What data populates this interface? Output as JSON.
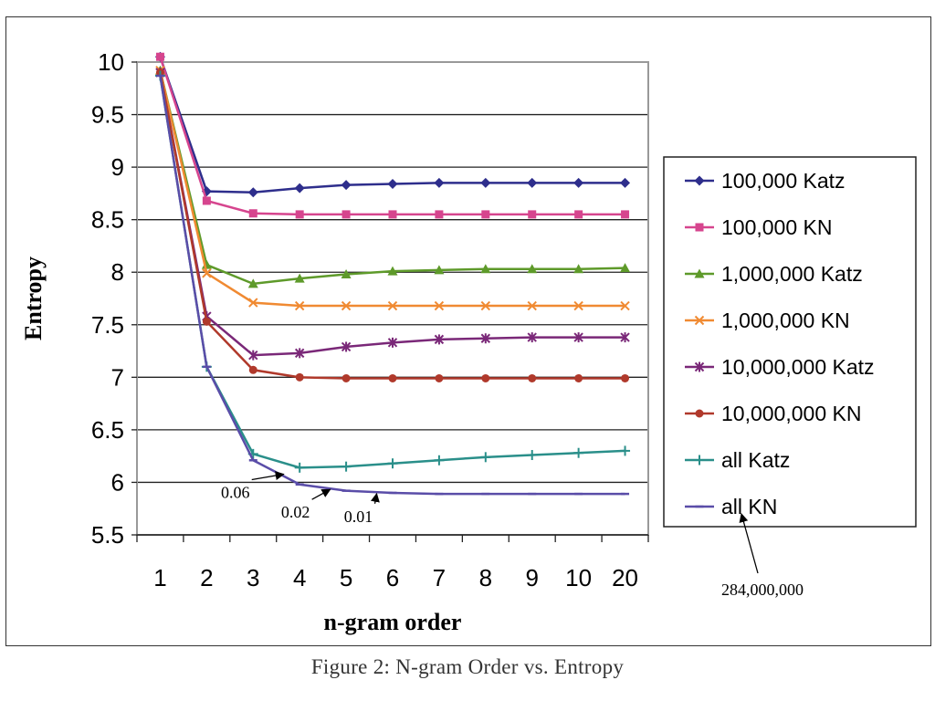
{
  "caption": "Figure 2: N-gram Order vs. Entropy",
  "chart_data": {
    "type": "line",
    "title": "",
    "xlabel": "n-gram order",
    "ylabel": "Entropy",
    "categories": [
      "1",
      "2",
      "3",
      "4",
      "5",
      "6",
      "7",
      "8",
      "9",
      "10",
      "20"
    ],
    "ylim": [
      5.5,
      10
    ],
    "yticks": [
      "5.5",
      "6",
      "6.5",
      "7",
      "7.5",
      "8",
      "8.5",
      "9",
      "9.5",
      "10"
    ],
    "grid": true,
    "legend_position": "right",
    "series": [
      {
        "name": "100,000 Katz",
        "color": "#2e2e8c",
        "marker": "diamond",
        "values": [
          10.05,
          8.77,
          8.76,
          8.8,
          8.83,
          8.84,
          8.85,
          8.85,
          8.85,
          8.85,
          8.85
        ]
      },
      {
        "name": "100,000 KN",
        "color": "#d6458e",
        "marker": "square",
        "values": [
          10.05,
          8.68,
          8.56,
          8.55,
          8.55,
          8.55,
          8.55,
          8.55,
          8.55,
          8.55,
          8.55
        ]
      },
      {
        "name": "1,000,000 Katz",
        "color": "#5e9a2a",
        "marker": "triangle",
        "values": [
          9.92,
          8.07,
          7.89,
          7.94,
          7.98,
          8.01,
          8.02,
          8.03,
          8.03,
          8.03,
          8.04
        ]
      },
      {
        "name": "1,000,000 KN",
        "color": "#f08a32",
        "marker": "x",
        "values": [
          9.92,
          7.99,
          7.71,
          7.68,
          7.68,
          7.68,
          7.68,
          7.68,
          7.68,
          7.68,
          7.68
        ]
      },
      {
        "name": "10,000,000 Katz",
        "color": "#7a2878",
        "marker": "star",
        "values": [
          9.9,
          7.58,
          7.21,
          7.23,
          7.29,
          7.33,
          7.36,
          7.37,
          7.38,
          7.38,
          7.38
        ]
      },
      {
        "name": "10,000,000 KN",
        "color": "#b0392b",
        "marker": "circle",
        "values": [
          9.9,
          7.53,
          7.07,
          7.0,
          6.99,
          6.99,
          6.99,
          6.99,
          6.99,
          6.99,
          6.99
        ]
      },
      {
        "name": "all Katz",
        "color": "#2a8f8a",
        "marker": "plus",
        "values": [
          9.87,
          7.1,
          6.27,
          6.14,
          6.15,
          6.18,
          6.21,
          6.24,
          6.26,
          6.28,
          6.3
        ]
      },
      {
        "name": "all KN",
        "color": "#5a4da8",
        "marker": "dash",
        "values": [
          9.87,
          7.1,
          6.21,
          5.98,
          5.92,
          5.9,
          5.89,
          5.89,
          5.89,
          5.89,
          5.89
        ]
      }
    ],
    "annotations": [
      {
        "text": "0.06",
        "target_category": 3
      },
      {
        "text": "0.02",
        "target_category": 4
      },
      {
        "text": "0.01",
        "target_category": 5
      },
      {
        "text": "284,000,000",
        "target": "legend-all-kn"
      }
    ]
  }
}
